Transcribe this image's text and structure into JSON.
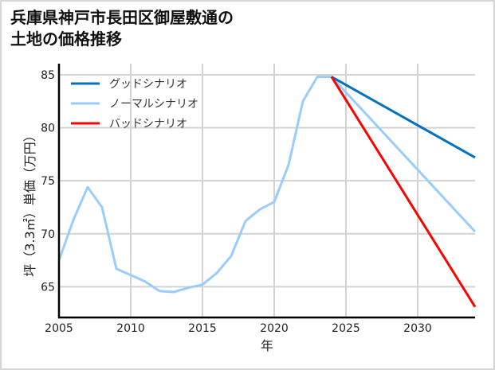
{
  "title_lines": [
    "兵庫県神戸市長田区御屋敷通の",
    "土地の価格推移"
  ],
  "chart_data": {
    "type": "line",
    "title": "兵庫県神戸市長田区御屋敷通の土地の価格推移",
    "xlabel": "年",
    "ylabel": "坪（3.3㎡）単価（万円）",
    "xlim": [
      2005,
      2034
    ],
    "ylim": [
      62.1,
      86.05
    ],
    "xticks": [
      2005,
      2010,
      2015,
      2020,
      2025,
      2030
    ],
    "yticks": [
      65,
      70,
      75,
      80,
      85
    ],
    "grid": true,
    "legend_position": "upper left",
    "series": [
      {
        "name": "グッドシナリオ",
        "color": "#0070c0",
        "x": [
          2024,
          2034
        ],
        "values": [
          84.8,
          77.2
        ]
      },
      {
        "name": "ノーマルシナリオ",
        "color": "#99ccff",
        "x": [
          2005,
          2006,
          2007,
          2008,
          2009,
          2010,
          2011,
          2012,
          2013,
          2014,
          2015,
          2016,
          2017,
          2018,
          2019,
          2020,
          2021,
          2022,
          2023,
          2024,
          2034
        ],
        "values": [
          67.5,
          71.3,
          74.4,
          72.5,
          66.7,
          66.1,
          65.5,
          64.6,
          64.5,
          64.9,
          65.2,
          66.3,
          67.9,
          71.2,
          72.3,
          73.0,
          76.5,
          82.5,
          84.8,
          84.8,
          70.2
        ]
      },
      {
        "name": "バッドシナリオ",
        "color": "#ff0000",
        "x": [
          2024,
          2034
        ],
        "values": [
          84.8,
          63.1
        ]
      }
    ]
  }
}
